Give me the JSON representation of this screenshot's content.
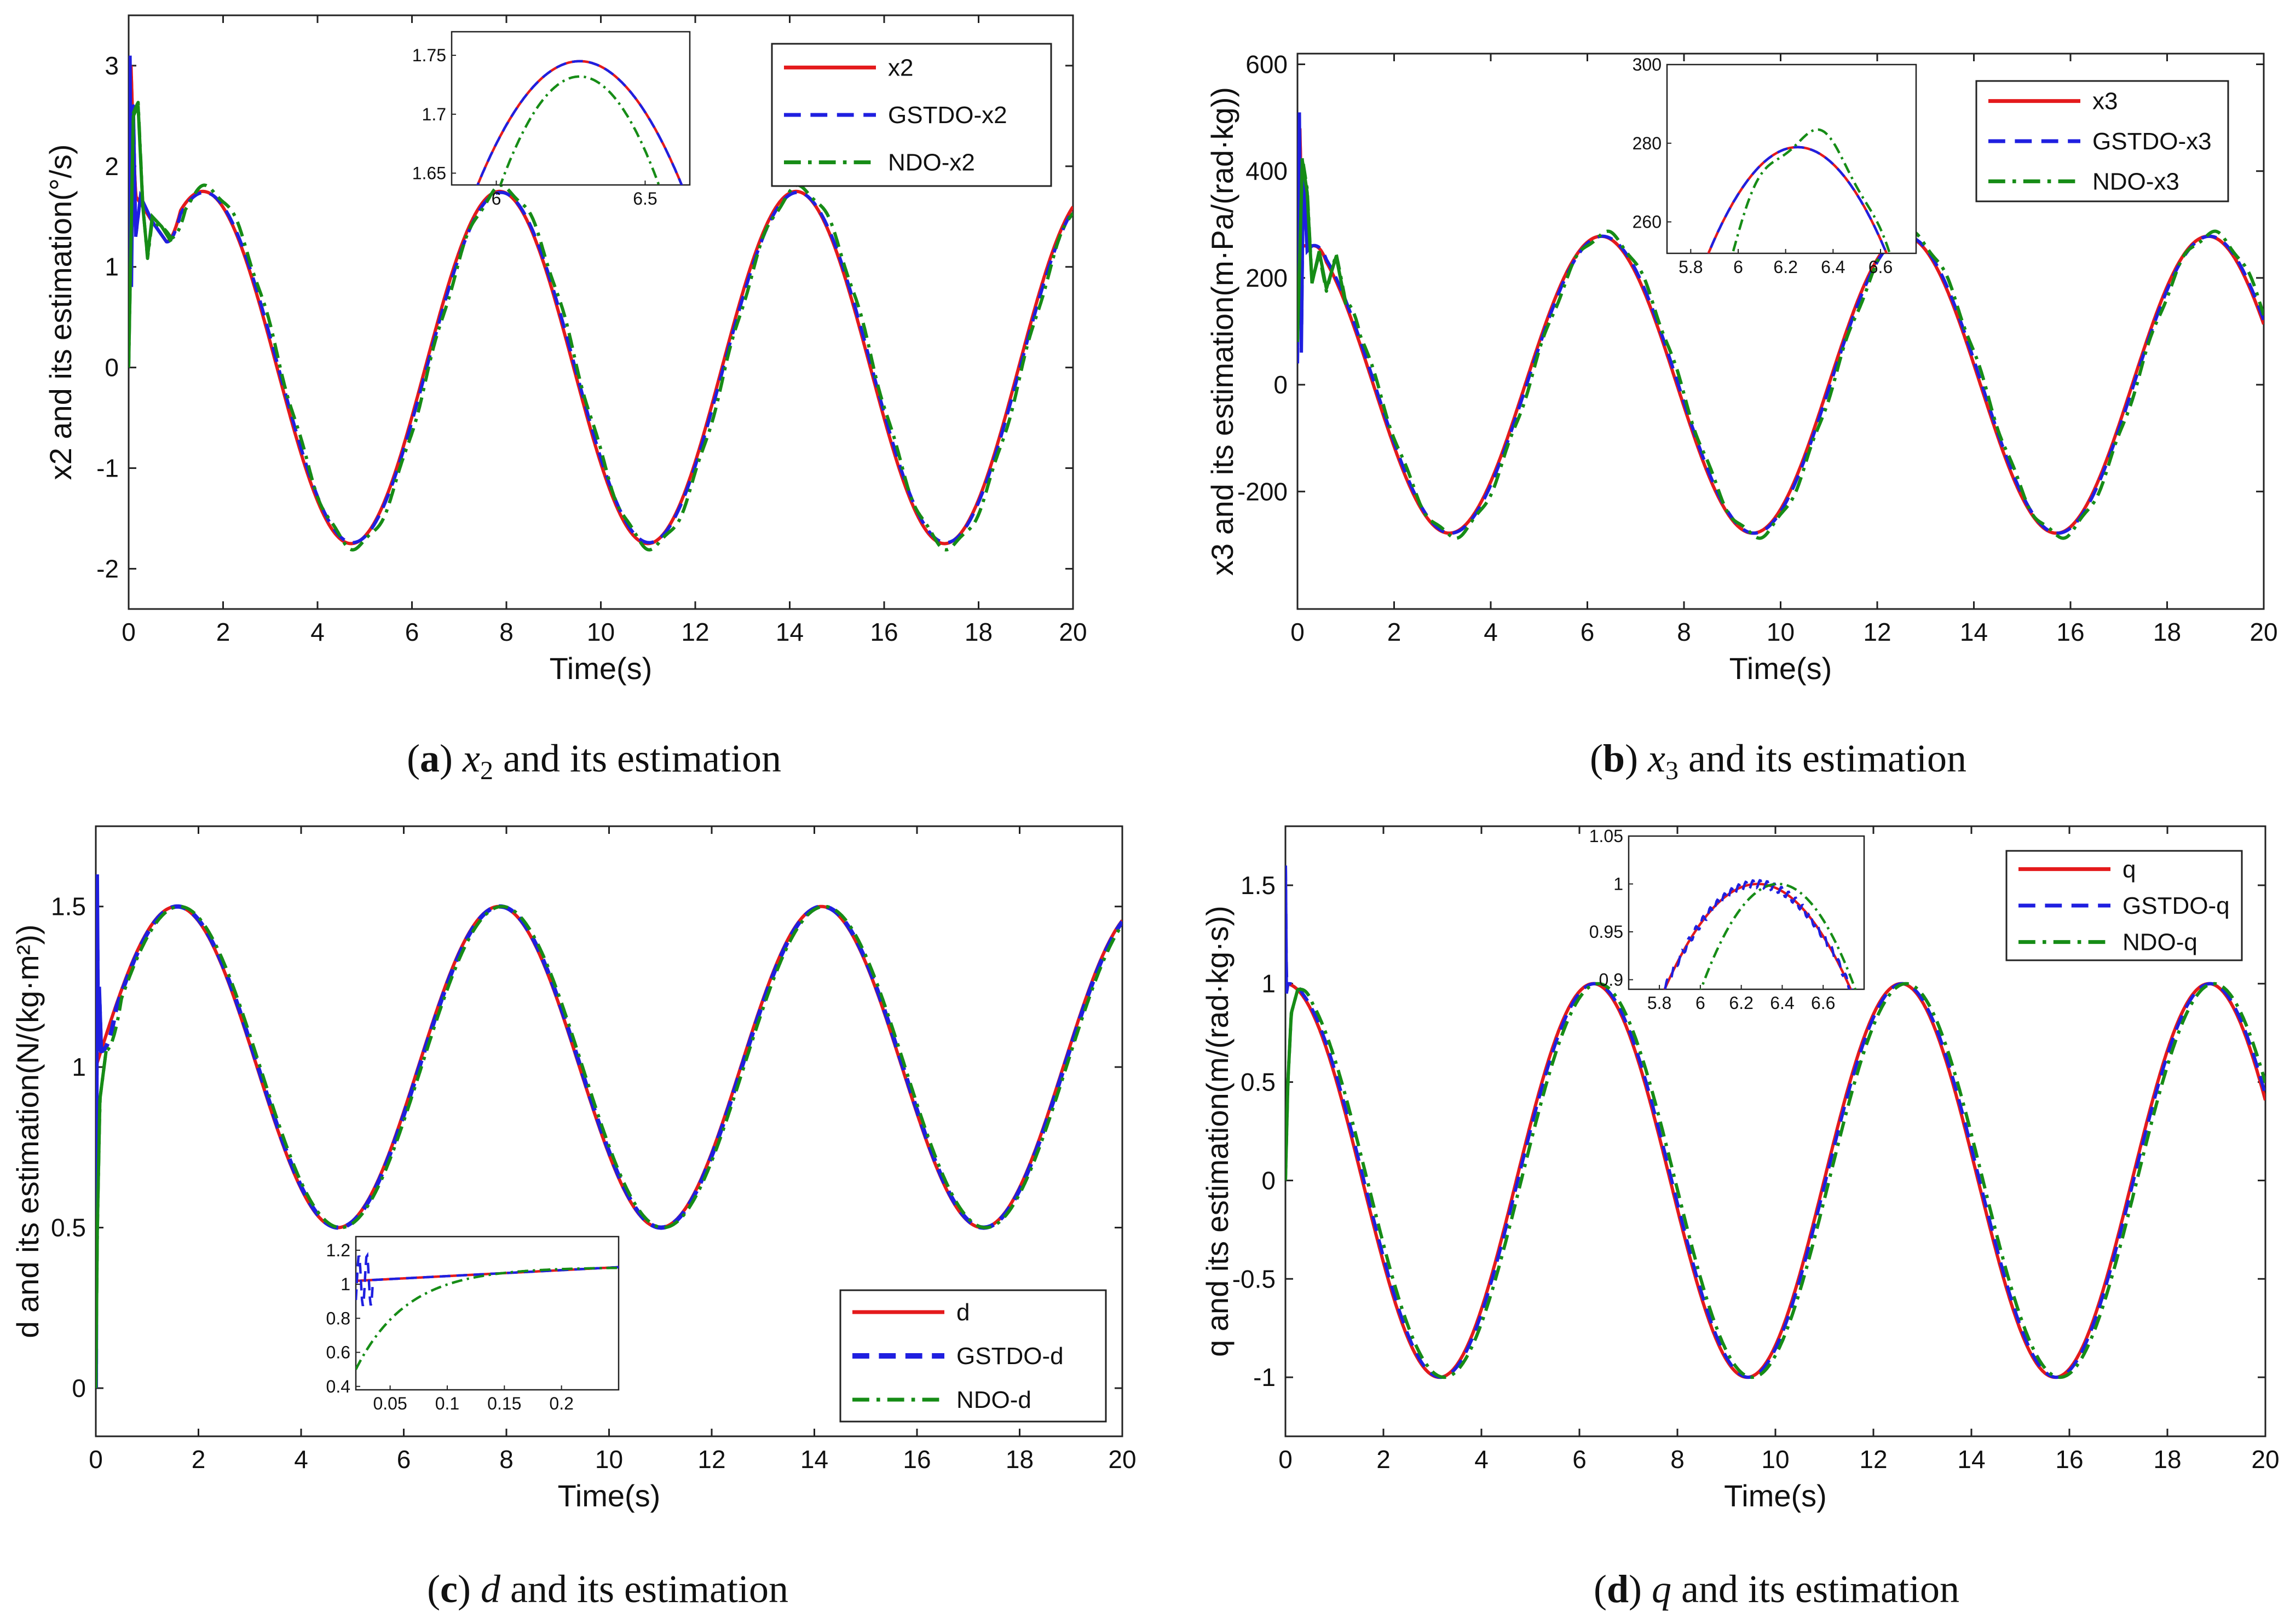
{
  "chart_data": [
    {
      "id": "a",
      "type": "line",
      "caption": {
        "letter": "a",
        "var": "x",
        "sub": "2",
        "text": "and its estimation"
      },
      "xlabel": "Time(s)",
      "ylabel": "x2 and its estimation(°/s)",
      "xlim": [
        0,
        20
      ],
      "ylim": [
        -2.4,
        3.5
      ],
      "xticks": [
        0,
        2,
        4,
        6,
        8,
        10,
        12,
        14,
        16,
        18,
        20
      ],
      "yticks": [
        -2,
        -1,
        0,
        1,
        2,
        3
      ],
      "ytick_labels": [
        "-2",
        "-1",
        "0",
        "1",
        "2",
        "3"
      ],
      "legend": {
        "position": "top-right",
        "entries": [
          "x2",
          "GSTDO-x2",
          "NDO-x2"
        ]
      },
      "series": [
        {
          "name": "x2",
          "color": "#e41a1c",
          "style": "solid",
          "amplitude": 1.75,
          "period": 6.283,
          "phase_shift": 0.0,
          "offset": 0,
          "wave": "sin",
          "transient": [
            [
              0,
              2.4
            ],
            [
              0.05,
              3.0
            ],
            [
              0.1,
              2.2
            ],
            [
              0.15,
              1.7
            ],
            [
              0.3,
              1.6
            ],
            [
              0.5,
              1.45
            ],
            [
              0.8,
              1.25
            ]
          ]
        },
        {
          "name": "GSTDO-x2",
          "color": "#1f1fe0",
          "style": "dash",
          "amplitude": 1.74,
          "period": 6.283,
          "phase_shift": -0.03,
          "offset": 0,
          "wave": "sin",
          "transient": [
            [
              0,
              0
            ],
            [
              0.03,
              3.1
            ],
            [
              0.06,
              0.8
            ],
            [
              0.1,
              2.6
            ],
            [
              0.15,
              1.3
            ],
            [
              0.25,
              1.7
            ],
            [
              0.5,
              1.45
            ],
            [
              0.8,
              1.25
            ]
          ]
        },
        {
          "name": "NDO-x2",
          "color": "#168c16",
          "style": "dashdot",
          "amplitude": 1.78,
          "period": 6.283,
          "phase_shift": -0.08,
          "offset": 0,
          "wave": "sin",
          "transient": [
            [
              0,
              0
            ],
            [
              0.05,
              1.3
            ],
            [
              0.1,
              2.5
            ],
            [
              0.2,
              2.6
            ],
            [
              0.3,
              1.6
            ],
            [
              0.4,
              1.1
            ],
            [
              0.5,
              1.5
            ],
            [
              0.7,
              1.4
            ],
            [
              0.9,
              1.25
            ]
          ]
        }
      ],
      "inset": {
        "xlim": [
          5.85,
          6.65
        ],
        "ylim": [
          1.64,
          1.77
        ],
        "xticks": [
          6,
          6.5
        ],
        "yticks": [
          1.65,
          1.7,
          1.75
        ],
        "ytick_labels": [
          "1.65",
          "1.7",
          "1.75"
        ],
        "peak": [
          6.28,
          1.745
        ],
        "peak_ndo": [
          6.28,
          1.732
        ]
      }
    },
    {
      "id": "b",
      "type": "line",
      "caption": {
        "letter": "b",
        "var": "x",
        "sub": "3",
        "text": "and its estimation"
      },
      "xlabel": "Time(s)",
      "ylabel": "x3 and its estimation(m·Pa/(rad·kg))",
      "xlim": [
        0,
        20
      ],
      "ylim": [
        -420,
        620
      ],
      "xticks": [
        0,
        2,
        4,
        6,
        8,
        10,
        12,
        14,
        16,
        18,
        20
      ],
      "yticks": [
        -200,
        0,
        200,
        400,
        600
      ],
      "ytick_labels": [
        "-200",
        "0",
        "200",
        "400",
        "600"
      ],
      "legend": {
        "position": "top-right",
        "entries": [
          "x3",
          "GSTDO-x3",
          "NDO-x3"
        ]
      },
      "series": [
        {
          "name": "x3",
          "color": "#e41a1c",
          "style": "solid",
          "amplitude": 278,
          "period": 6.283,
          "phase_shift": 0.0,
          "offset": 0,
          "wave": "cos",
          "transient": [
            [
              0,
              300
            ],
            [
              0.05,
              480
            ],
            [
              0.1,
              260
            ],
            [
              0.3,
              260
            ]
          ]
        },
        {
          "name": "GSTDO-x3",
          "color": "#1f1fe0",
          "style": "dash",
          "amplitude": 278,
          "period": 6.283,
          "phase_shift": -0.03,
          "offset": 0,
          "wave": "cos",
          "transient": [
            [
              0,
              40
            ],
            [
              0.04,
              510
            ],
            [
              0.08,
              60
            ],
            [
              0.12,
              400
            ],
            [
              0.2,
              250
            ],
            [
              0.3,
              260
            ]
          ]
        },
        {
          "name": "NDO-x3",
          "color": "#168c16",
          "style": "dashdot",
          "amplitude": 282,
          "period": 6.283,
          "phase_shift": -0.08,
          "offset": 0,
          "wave": "cos",
          "transient": [
            [
              0,
              80
            ],
            [
              0.1,
              420
            ],
            [
              0.2,
              360
            ],
            [
              0.3,
              190
            ],
            [
              0.45,
              250
            ],
            [
              0.6,
              180
            ],
            [
              0.8,
              240
            ],
            [
              1.0,
              150
            ]
          ]
        }
      ],
      "inset": {
        "xlim": [
          5.7,
          6.75
        ],
        "ylim": [
          252,
          300
        ],
        "xticks": [
          5.8,
          6,
          6.2,
          6.4,
          6.6
        ],
        "yticks": [
          260,
          280,
          300
        ],
        "ytick_labels": [
          "260",
          "280",
          "300"
        ],
        "peak": [
          6.25,
          279
        ],
        "peak_ndo": [
          6.3,
          282
        ]
      }
    },
    {
      "id": "c",
      "type": "line",
      "caption": {
        "letter": "c",
        "var": "d",
        "sub": "",
        "text": "and its estimation"
      },
      "xlabel": "Time(s)",
      "ylabel": "d and its estimation(N/(kg·m²))",
      "xlim": [
        0,
        20
      ],
      "ylim": [
        -0.15,
        1.75
      ],
      "xticks": [
        0,
        2,
        4,
        6,
        8,
        10,
        12,
        14,
        16,
        18,
        20
      ],
      "yticks": [
        0,
        0.5,
        1,
        1.5
      ],
      "ytick_labels": [
        "0",
        "0.5",
        "1",
        "1.5"
      ],
      "legend": {
        "position": "bottom-right",
        "entries": [
          "d",
          "GSTDO-d",
          "NDO-d"
        ]
      },
      "series": [
        {
          "name": "d",
          "color": "#e41a1c",
          "style": "solid",
          "amplitude": 0.5,
          "period": 6.283,
          "phase_shift": 0.0,
          "offset": 1.0,
          "wave": "sin",
          "transient": [
            [
              0,
              1.0
            ]
          ]
        },
        {
          "name": "GSTDO-d",
          "color": "#1f1fe0",
          "style": "dash",
          "amplitude": 0.5,
          "period": 6.283,
          "phase_shift": -0.02,
          "offset": 1.0,
          "wave": "sin",
          "transient": [
            [
              0,
              0
            ],
            [
              0.02,
              1.6
            ],
            [
              0.04,
              1.05
            ],
            [
              0.06,
              1.25
            ],
            [
              0.1,
              1.05
            ]
          ]
        },
        {
          "name": "NDO-d",
          "color": "#168c16",
          "style": "dashdot",
          "amplitude": 0.5,
          "period": 6.283,
          "phase_shift": -0.06,
          "offset": 1.0,
          "wave": "sin",
          "transient": [
            [
              0,
              0
            ],
            [
              0.03,
              0.5
            ],
            [
              0.08,
              0.9
            ],
            [
              0.2,
              1.05
            ]
          ]
        }
      ],
      "inset": {
        "xlim": [
          0.02,
          0.25
        ],
        "ylim": [
          0.38,
          1.28
        ],
        "xticks": [
          0.05,
          0.1,
          0.15,
          0.2
        ],
        "yticks": [
          0.4,
          0.6,
          0.8,
          1,
          1.2
        ],
        "ytick_labels": [
          "0.4",
          "0.6",
          "0.8",
          "1",
          "1.2"
        ],
        "kind": "transient"
      }
    },
    {
      "id": "d",
      "type": "line",
      "caption": {
        "letter": "d",
        "var": "q",
        "sub": "",
        "text": "and its estimation"
      },
      "xlabel": "Time(s)",
      "ylabel": "q and its estimation(m/(rad·kg·s))",
      "xlim": [
        0,
        20
      ],
      "ylim": [
        -1.3,
        1.8
      ],
      "xticks": [
        0,
        2,
        4,
        6,
        8,
        10,
        12,
        14,
        16,
        18,
        20
      ],
      "yticks": [
        -1,
        -0.5,
        0,
        0.5,
        1,
        1.5
      ],
      "ytick_labels": [
        "-1",
        "-0.5",
        "0",
        "0.5",
        "1",
        "1.5"
      ],
      "legend": {
        "position": "top-right",
        "entries": [
          "q",
          "GSTDO-q",
          "NDO-q"
        ]
      },
      "series": [
        {
          "name": "q",
          "color": "#e41a1c",
          "style": "solid",
          "amplitude": 1.0,
          "period": 6.283,
          "phase_shift": 0.0,
          "offset": 0,
          "wave": "cos",
          "transient": [
            [
              0,
              1.0
            ]
          ]
        },
        {
          "name": "GSTDO-q",
          "color": "#1f1fe0",
          "style": "dash",
          "amplitude": 1.0,
          "period": 6.283,
          "phase_shift": -0.03,
          "offset": 0,
          "wave": "cos",
          "transient": [
            [
              0,
              1.6
            ],
            [
              0.02,
              0.95
            ],
            [
              0.05,
              1.0
            ]
          ]
        },
        {
          "name": "NDO-q",
          "color": "#168c16",
          "style": "dashdot",
          "amplitude": 1.0,
          "period": 6.283,
          "phase_shift": -0.1,
          "offset": 0,
          "wave": "cos",
          "transient": [
            [
              0,
              0
            ],
            [
              0.05,
              0.5
            ],
            [
              0.12,
              0.85
            ],
            [
              0.25,
              0.97
            ]
          ]
        }
      ],
      "inset": {
        "xlim": [
          5.65,
          6.8
        ],
        "ylim": [
          0.89,
          1.05
        ],
        "xticks": [
          5.8,
          6,
          6.2,
          6.4,
          6.6
        ],
        "yticks": [
          0.9,
          0.95,
          1,
          1.05
        ],
        "ytick_labels": [
          "0.9",
          "0.95",
          "1",
          "1.05"
        ],
        "peak": [
          6.28,
          1.0
        ],
        "peak_ndo": [
          6.38,
          1.0
        ]
      }
    }
  ]
}
